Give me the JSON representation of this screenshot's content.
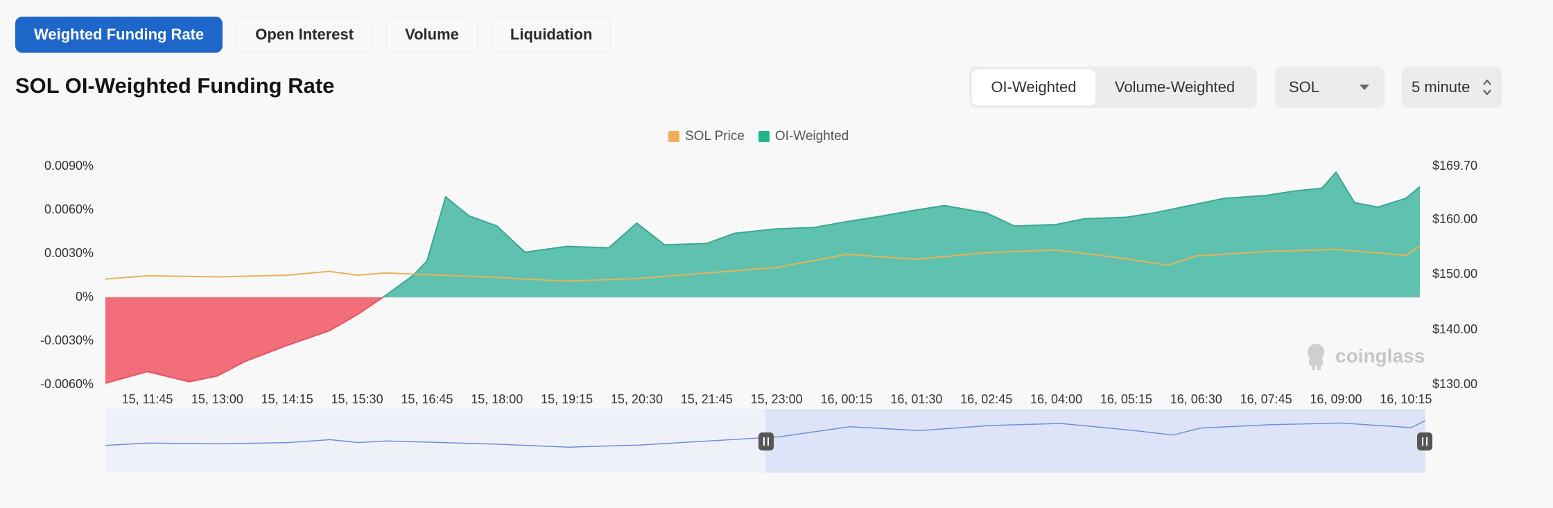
{
  "tabs": [
    {
      "label": "Weighted Funding Rate",
      "active": true
    },
    {
      "label": "Open Interest",
      "active": false
    },
    {
      "label": "Volume",
      "active": false
    },
    {
      "label": "Liquidation",
      "active": false
    }
  ],
  "title": "SOL OI-Weighted Funding Rate",
  "weighting": {
    "options": [
      "OI-Weighted",
      "Volume-Weighted"
    ],
    "selected": "OI-Weighted"
  },
  "coin_select": {
    "value": "SOL"
  },
  "interval_select": {
    "value": "5 minute"
  },
  "watermark": "coinglass",
  "colors": {
    "accent": "#1e66c9",
    "positive_fill": "#5fc2b0",
    "positive_line": "#3aa88f",
    "negative_fill": "#f26e7a",
    "price_line": "#e9b255",
    "navigator_line": "#6e8fd8",
    "navigator_selected": "#dde4f7"
  },
  "chart_data": {
    "type": "area",
    "legend": [
      {
        "name": "SOL Price",
        "color": "#f0ad5a"
      },
      {
        "name": "OI-Weighted",
        "color": "#22b58a"
      }
    ],
    "legend_position": "top-center",
    "grid": true,
    "x_ticks": [
      "15, 11:45",
      "15, 13:00",
      "15, 14:15",
      "15, 15:30",
      "15, 16:45",
      "15, 18:00",
      "15, 19:15",
      "15, 20:30",
      "15, 21:45",
      "15, 23:00",
      "16, 00:15",
      "16, 01:30",
      "16, 02:45",
      "16, 04:00",
      "16, 05:15",
      "16, 06:30",
      "16, 07:45",
      "16, 09:00",
      "16, 10:15"
    ],
    "y_left": {
      "ticks": [
        "0.0090%",
        "0.0060%",
        "0.0030%",
        "0%",
        "-0.0030%",
        "-0.0060%"
      ],
      "range": [
        -0.006,
        0.009
      ],
      "unit": "%"
    },
    "y_right": {
      "ticks": [
        "$169.70",
        "$160.00",
        "$150.00",
        "$140.00",
        "$130.00"
      ],
      "range": [
        130,
        169.7
      ],
      "unit": "USD"
    },
    "series": [
      {
        "name": "OI-Weighted",
        "axis": "left",
        "x": [
          "15, 11:00",
          "15, 11:45",
          "15, 12:30",
          "15, 13:00",
          "15, 13:30",
          "15, 14:15",
          "15, 15:00",
          "15, 15:30",
          "15, 16:00",
          "15, 16:30",
          "15, 16:45",
          "15, 17:05",
          "15, 17:30",
          "15, 18:00",
          "15, 18:30",
          "15, 19:15",
          "15, 20:00",
          "15, 20:30",
          "15, 21:00",
          "15, 21:45",
          "15, 22:15",
          "15, 23:00",
          "15, 23:40",
          "16, 00:15",
          "16, 00:45",
          "16, 01:30",
          "16, 02:00",
          "16, 02:45",
          "16, 03:15",
          "16, 04:00",
          "16, 04:30",
          "16, 05:15",
          "16, 05:45",
          "16, 06:30",
          "16, 07:00",
          "16, 07:45",
          "16, 08:15",
          "16, 08:45",
          "16, 09:00",
          "16, 09:20",
          "16, 09:45",
          "16, 10:15",
          "16, 10:30"
        ],
        "values": [
          -0.0059,
          -0.0051,
          -0.0058,
          -0.0054,
          -0.0044,
          -0.0033,
          -0.0023,
          -0.0012,
          0.0001,
          0.0015,
          0.0025,
          0.0069,
          0.0056,
          0.0049,
          0.0031,
          0.0035,
          0.0034,
          0.0051,
          0.0036,
          0.0037,
          0.0044,
          0.0047,
          0.0048,
          0.0052,
          0.0055,
          0.006,
          0.0063,
          0.0058,
          0.0049,
          0.005,
          0.0054,
          0.0055,
          0.0058,
          0.0064,
          0.0068,
          0.007,
          0.0073,
          0.0075,
          0.0086,
          0.0065,
          0.0062,
          0.0068,
          0.0076
        ]
      },
      {
        "name": "SOL Price",
        "axis": "right",
        "x": [
          "15, 11:00",
          "15, 11:45",
          "15, 13:00",
          "15, 14:15",
          "15, 15:00",
          "15, 15:30",
          "15, 16:00",
          "15, 16:45",
          "15, 18:00",
          "15, 19:15",
          "15, 20:30",
          "15, 21:45",
          "15, 23:00",
          "16, 00:15",
          "16, 01:30",
          "16, 02:45",
          "16, 04:00",
          "16, 05:15",
          "16, 06:00",
          "16, 06:30",
          "16, 07:45",
          "16, 09:00",
          "16, 10:15",
          "16, 10:30"
        ],
        "values": [
          149.2,
          149.8,
          149.6,
          149.9,
          150.6,
          149.9,
          150.3,
          150.0,
          149.5,
          148.8,
          149.3,
          150.3,
          151.3,
          153.7,
          152.8,
          154.0,
          154.5,
          152.9,
          151.7,
          153.4,
          154.2,
          154.6,
          153.5,
          155.2
        ]
      }
    ]
  }
}
